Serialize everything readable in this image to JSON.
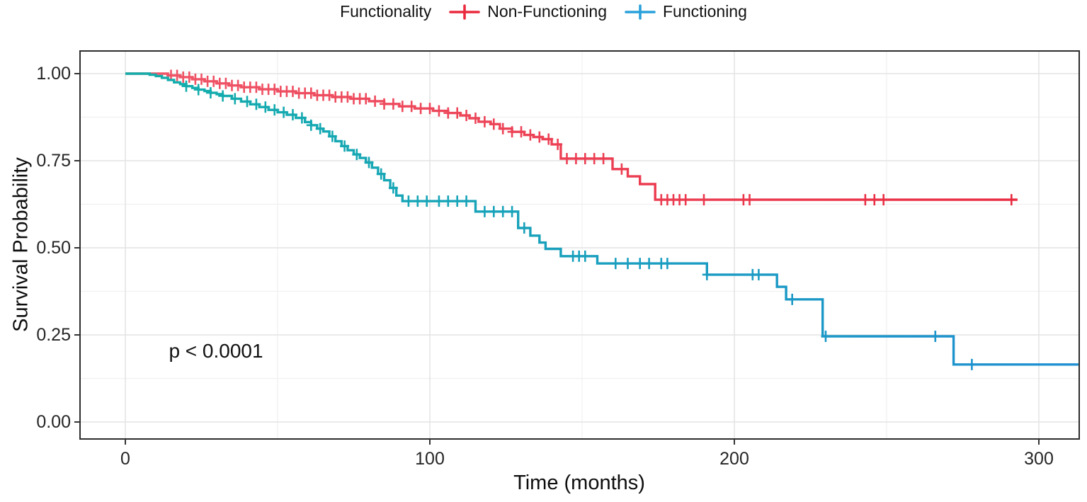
{
  "figure": {
    "legend": {
      "title": "Functionality",
      "items": [
        {
          "label": "Non-Functioning",
          "color": "#ea2b3e"
        },
        {
          "label": "Functioning",
          "color": "#2aa1db"
        }
      ]
    },
    "y_axis": {
      "title": "Survival Probability",
      "tick_labels": [
        "1.00",
        "0.75",
        "0.50",
        "0.25",
        "0.00"
      ]
    },
    "x_axis": {
      "title": "Time (months)",
      "tick_labels": [
        "0",
        "100",
        "200",
        "300"
      ]
    },
    "annotation": {
      "p_value": "p < 0.0001"
    }
  },
  "chart_data": {
    "type": "line",
    "subtype": "kaplan_meier_step",
    "title": "",
    "xlabel": "Time (months)",
    "ylabel": "Survival Probability",
    "xlim": [
      -15,
      313
    ],
    "ylim": [
      -0.05,
      1.05
    ],
    "grid": "major+minor",
    "legend_position": "top",
    "p_value_annotation": "p < 0.0001",
    "x_major_ticks": [
      0,
      100,
      200,
      300
    ],
    "x_minor_gridlines": [
      50,
      150,
      250
    ],
    "y_major_ticks": [
      1.0,
      0.75,
      0.5,
      0.25,
      0.0
    ],
    "y_minor_gridlines": [
      0.875,
      0.625,
      0.375,
      0.125
    ],
    "series": [
      {
        "name": "Non-Functioning",
        "legend_color": "#ea2b3e",
        "stroke_gradient": [
          "#f0596b",
          "#e8263c"
        ],
        "end_month": 293,
        "steps": [
          [
            0,
            1.0
          ],
          [
            14,
            0.995
          ],
          [
            18,
            0.99
          ],
          [
            22,
            0.984
          ],
          [
            26,
            0.978
          ],
          [
            30,
            0.972
          ],
          [
            34,
            0.966
          ],
          [
            38,
            0.961
          ],
          [
            44,
            0.955
          ],
          [
            50,
            0.949
          ],
          [
            56,
            0.944
          ],
          [
            62,
            0.938
          ],
          [
            68,
            0.933
          ],
          [
            74,
            0.928
          ],
          [
            80,
            0.921
          ],
          [
            85,
            0.913
          ],
          [
            90,
            0.906
          ],
          [
            95,
            0.9
          ],
          [
            101,
            0.893
          ],
          [
            106,
            0.887
          ],
          [
            110,
            0.88
          ],
          [
            113,
            0.872
          ],
          [
            116,
            0.862
          ],
          [
            120,
            0.855
          ],
          [
            123,
            0.842
          ],
          [
            127,
            0.833
          ],
          [
            131,
            0.824
          ],
          [
            134,
            0.818
          ],
          [
            137,
            0.812
          ],
          [
            140,
            0.797
          ],
          [
            143,
            0.756
          ],
          [
            160,
            0.726
          ],
          [
            165,
            0.705
          ],
          [
            169,
            0.683
          ],
          [
            174,
            0.638
          ]
        ],
        "censor_months": [
          15,
          17,
          19,
          21,
          23,
          25,
          27,
          29,
          31,
          33,
          35,
          37,
          39,
          41,
          43,
          45,
          47,
          49,
          51,
          53,
          55,
          57,
          59,
          61,
          63,
          65,
          67,
          69,
          71,
          73,
          75,
          77,
          79,
          82,
          85,
          88,
          91,
          94,
          97,
          100,
          103,
          106,
          109,
          112,
          115,
          118,
          121,
          124,
          127,
          130,
          133,
          136,
          139,
          142,
          145,
          148,
          151,
          154,
          157,
          163,
          176,
          178,
          180,
          182,
          184,
          190,
          203,
          205,
          243,
          246,
          249,
          291
        ]
      },
      {
        "name": "Functioning",
        "legend_color": "#2aa1db",
        "stroke_gradient": [
          "#12b0a8",
          "#1f8fd2"
        ],
        "end_month": 313,
        "steps": [
          [
            0,
            1.0
          ],
          [
            8,
            0.997
          ],
          [
            10,
            0.993
          ],
          [
            12,
            0.988
          ],
          [
            14,
            0.982
          ],
          [
            16,
            0.975
          ],
          [
            18,
            0.97
          ],
          [
            20,
            0.964
          ],
          [
            22,
            0.959
          ],
          [
            24,
            0.954
          ],
          [
            26,
            0.95
          ],
          [
            28,
            0.945
          ],
          [
            30,
            0.941
          ],
          [
            32,
            0.936
          ],
          [
            35,
            0.928
          ],
          [
            38,
            0.92
          ],
          [
            41,
            0.912
          ],
          [
            44,
            0.904
          ],
          [
            47,
            0.896
          ],
          [
            50,
            0.889
          ],
          [
            53,
            0.882
          ],
          [
            56,
            0.873
          ],
          [
            59,
            0.861
          ],
          [
            61,
            0.852
          ],
          [
            63,
            0.842
          ],
          [
            65,
            0.834
          ],
          [
            67,
            0.82
          ],
          [
            69,
            0.806
          ],
          [
            71,
            0.792
          ],
          [
            73,
            0.78
          ],
          [
            75,
            0.768
          ],
          [
            77,
            0.758
          ],
          [
            79,
            0.745
          ],
          [
            81,
            0.73
          ],
          [
            83,
            0.712
          ],
          [
            85,
            0.694
          ],
          [
            87,
            0.672
          ],
          [
            89,
            0.65
          ],
          [
            91,
            0.634
          ],
          [
            115,
            0.604
          ],
          [
            129,
            0.557
          ],
          [
            133,
            0.535
          ],
          [
            136,
            0.515
          ],
          [
            138,
            0.497
          ],
          [
            143,
            0.476
          ],
          [
            155,
            0.455
          ],
          [
            191,
            0.423
          ],
          [
            214,
            0.388
          ],
          [
            217,
            0.352
          ],
          [
            229,
            0.246
          ],
          [
            272,
            0.165
          ]
        ],
        "censor_months": [
          20,
          24,
          28,
          32,
          36,
          40,
          43,
          46,
          49,
          52,
          55,
          58,
          61,
          64,
          68,
          72,
          76,
          80,
          84,
          88,
          93,
          96,
          99,
          103,
          106,
          109,
          112,
          118,
          121,
          124,
          127,
          131,
          147,
          149,
          151,
          161,
          165,
          169,
          172,
          176,
          178,
          191,
          206,
          208,
          219,
          230,
          266,
          278
        ]
      }
    ]
  }
}
